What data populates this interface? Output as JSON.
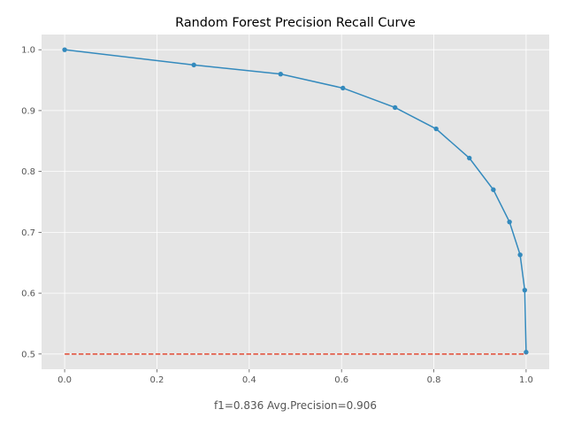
{
  "chart_data": {
    "type": "line",
    "title": "Random Forest Precision Recall Curve",
    "xlabel": "f1=0.836  Avg.Precision=0.906",
    "ylabel": "",
    "xlim": [
      -0.05,
      1.05
    ],
    "ylim": [
      0.475,
      1.025
    ],
    "xticks": [
      "0.0",
      "0.2",
      "0.4",
      "0.6",
      "0.8",
      "1.0"
    ],
    "yticks": [
      "0.5",
      "0.6",
      "0.7",
      "0.8",
      "0.9",
      "1.0"
    ],
    "grid": true,
    "style": "ggplot",
    "series": [
      {
        "kind": "line-with-markers",
        "color": "#348ABD",
        "x": [
          0.0,
          0.28,
          0.468,
          0.603,
          0.716,
          0.805,
          0.877,
          0.929,
          0.964,
          0.987,
          0.997,
          1.0
        ],
        "y": [
          1.0,
          0.975,
          0.96,
          0.937,
          0.905,
          0.87,
          0.822,
          0.77,
          0.717,
          0.663,
          0.605,
          0.503
        ]
      },
      {
        "kind": "dashed-baseline",
        "color": "#E24A33",
        "x": [
          0.0,
          1.0
        ],
        "y": [
          0.5,
          0.5
        ]
      }
    ]
  }
}
